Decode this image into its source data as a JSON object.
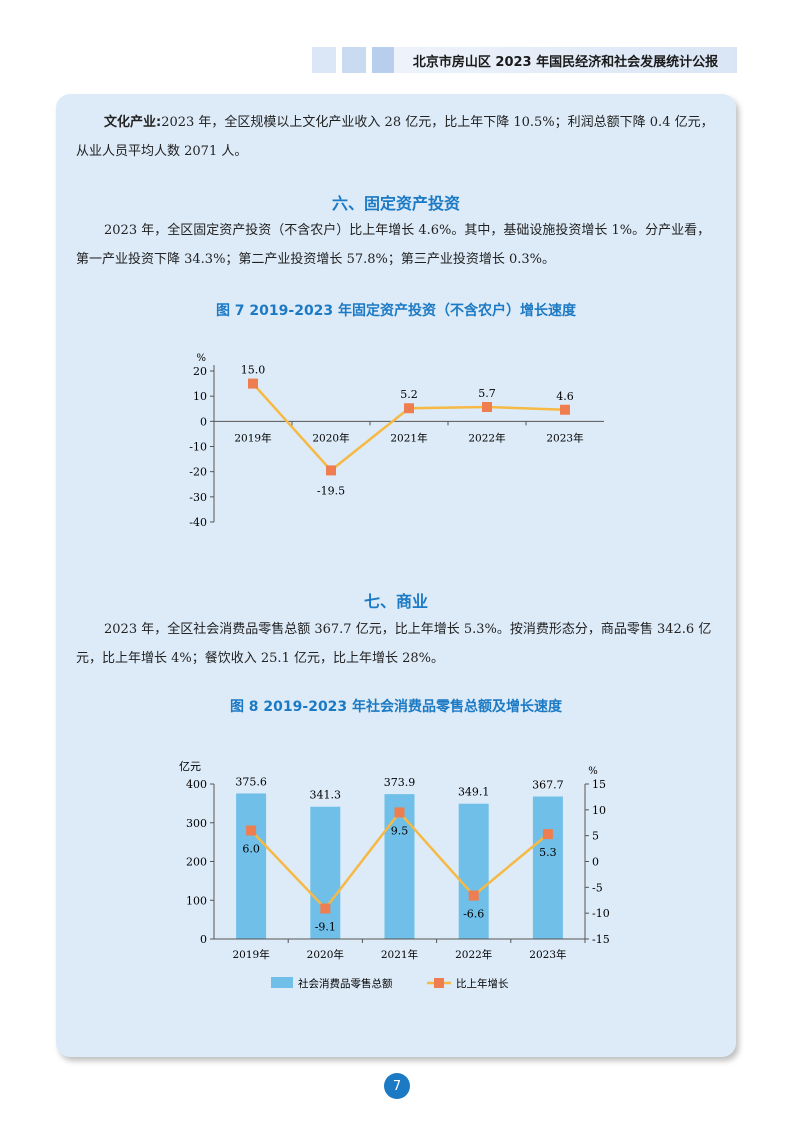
{
  "header": {
    "title": "北京市房山区 2023 年国民经济和社会发展统计公报"
  },
  "culture": {
    "label": "文化产业:",
    "text": "2023 年，全区规模以上文化产业收入 28 亿元，比上年下降 10.5%；利润总额下降 0.4 亿元，从业人员平均人数 2071 人。"
  },
  "section6": {
    "title": "六、固定资产投资",
    "text": "2023 年，全区固定资产投资（不含农户）比上年增长 4.6%。其中，基础设施投资增长 1%。分产业看，第一产业投资下降 34.3%；第二产业投资增长 57.8%；第三产业投资增长 0.3%。"
  },
  "section7": {
    "title": "七、商业",
    "text": "2023 年，全区社会消费品零售总额 367.7 亿元，比上年增长 5.3%。按消费形态分，商品零售 342.6 亿元，比上年增长 4%；餐饮收入 25.1 亿元，比上年增长 28%。"
  },
  "colors": {
    "accent": "#1c7ac4",
    "bar": "#6fbfe9",
    "line": "#f5b944",
    "marker": "#ee7d50",
    "panel": "#ddebf8"
  },
  "chart_data": [
    {
      "type": "line",
      "title": "图 7  2019-2023 年固定资产投资（不含农户）增长速度",
      "ylabel": "%",
      "categories": [
        "2019年",
        "2020年",
        "2021年",
        "2022年",
        "2023年"
      ],
      "values": [
        15.0,
        -19.5,
        5.2,
        5.7,
        4.6
      ],
      "value_labels": [
        "15.0",
        "-19.5",
        "5.2",
        "5.7",
        "4.6"
      ],
      "ylim": [
        -40,
        20
      ],
      "yticks": [
        "20",
        "10",
        "0",
        "-10",
        "-20",
        "-30",
        "-40"
      ]
    },
    {
      "type": "bar",
      "title": "图 8  2019-2023 年社会消费品零售总额及增长速度",
      "categories": [
        "2019年",
        "2020年",
        "2021年",
        "2022年",
        "2023年"
      ],
      "left_axis": {
        "label": "亿元",
        "ylim": [
          0,
          400
        ],
        "ticks": [
          "400",
          "300",
          "200",
          "100",
          "0"
        ]
      },
      "right_axis": {
        "label": "%",
        "ylim": [
          -15,
          15
        ],
        "ticks": [
          "15",
          "10",
          "5",
          "0",
          "-5",
          "-10",
          "-15"
        ]
      },
      "series": [
        {
          "name": "社会消费品零售总额",
          "type": "bar",
          "values": [
            375.6,
            341.3,
            373.9,
            349.1,
            367.7
          ],
          "value_labels": [
            "375.6",
            "341.3",
            "373.9",
            "349.1",
            "367.7"
          ]
        },
        {
          "name": "比上年增长",
          "type": "line",
          "values": [
            6.0,
            -9.1,
            9.5,
            -6.6,
            5.3
          ],
          "value_labels": [
            "6.0",
            "-9.1",
            "9.5",
            "-6.6",
            "5.3"
          ]
        }
      ],
      "legend_position": "bottom"
    }
  ],
  "page_number": "7"
}
